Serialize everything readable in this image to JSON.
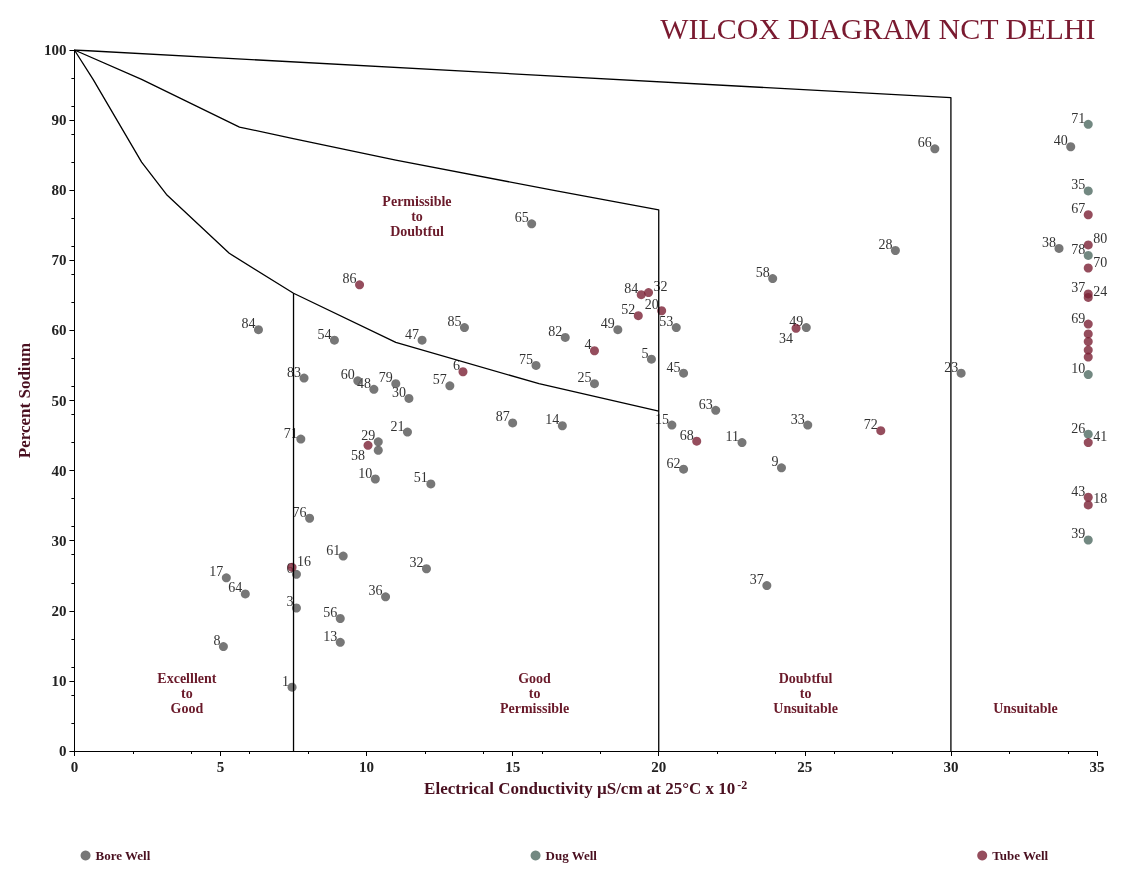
{
  "chart_data": {
    "type": "scatter",
    "title": "WILCOX DIAGRAM NCT DELHI",
    "xlabel": "Electrical Conductivity µS/cm at 25°C x 10$^{-2}$",
    "ylabel": "Percent Sodium",
    "xlim": [
      0,
      35
    ],
    "xticks": [
      0,
      5,
      10,
      15,
      20,
      25,
      30,
      35
    ],
    "ylim": [
      0,
      100
    ],
    "yticks": [
      0,
      10,
      20,
      30,
      40,
      50,
      60,
      70,
      80,
      90,
      100
    ],
    "grid": false,
    "legend": "bottom",
    "marker": "circle",
    "series": [
      {
        "name": "Bore Well",
        "color": "#555555",
        "x": [
          15.65,
          6.3,
          8.9,
          11.9,
          13.35,
          16.8,
          15.8,
          7.86,
          9.7,
          10.25,
          11.0,
          11.45,
          12.85,
          29.45,
          34.1,
          28.1,
          33.7,
          23.9,
          20.6,
          18.6,
          19.75,
          20.85,
          17.8,
          25.05,
          30.35,
          21.95,
          16.7,
          20.45,
          25.1,
          22.85,
          20.85,
          24.2,
          23.7,
          15.0,
          7.75,
          11.4,
          10.4,
          10.4,
          10.3,
          12.2,
          8.05,
          9.2,
          12.05,
          7.6,
          5.2,
          5.85,
          10.65,
          7.6,
          9.1,
          9.1,
          5.1,
          7.45
        ],
        "values": [
          75.2,
          60.1,
          58.6,
          58.6,
          60.4,
          59.0,
          55.0,
          53.2,
          52.8,
          51.6,
          52.4,
          50.3,
          52.1,
          85.9,
          86.2,
          71.4,
          71.7,
          67.4,
          60.4,
          60.1,
          55.9,
          53.9,
          52.4,
          60.4,
          53.9,
          48.6,
          46.4,
          46.5,
          46.5,
          44.0,
          40.2,
          40.4,
          23.6,
          46.8,
          44.5,
          45.5,
          44.1,
          42.9,
          38.8,
          38.1,
          33.2,
          27.8,
          26.0,
          25.2,
          24.7,
          22.4,
          22.0,
          20.4,
          18.9,
          15.5,
          14.9,
          9.1
        ]
      },
      {
        "name": "Dug Well",
        "color": "#4f6a62",
        "x": [
          34.7,
          34.7,
          34.7,
          34.7,
          34.7,
          34.7
        ],
        "values": [
          89.4,
          79.9,
          70.7,
          53.7,
          45.2,
          30.1
        ]
      },
      {
        "name": "Tube Well",
        "color": "#7a2035",
        "x": [
          9.76,
          13.3,
          17.8,
          19.4,
          19.65,
          19.3,
          20.1,
          24.7,
          27.6,
          7.45,
          10.05,
          34.7,
          34.7,
          34.7,
          34.7,
          34.7,
          34.7,
          34.7,
          34.7,
          34.7,
          34.7,
          34.7,
          34.7,
          34.7,
          21.3
        ],
        "values": [
          66.5,
          54.1,
          57.1,
          65.1,
          65.4,
          62.1,
          62.8,
          60.3,
          45.7,
          26.2,
          43.6,
          76.5,
          72.2,
          68.9,
          65.2,
          64.7,
          60.9,
          59.5,
          58.4,
          57.2,
          56.2,
          44.0,
          36.2,
          35.1,
          44.2
        ]
      },
      {
        "type": "line",
        "color": "#000000",
        "marker": "none",
        "x": [
          0,
          30,
          30
        ],
        "values": [
          100,
          93.2,
          0
        ]
      },
      {
        "type": "line",
        "color": "#000000",
        "marker": "none",
        "x": [
          0,
          2.3,
          5.65,
          7.45,
          11,
          16.5,
          20,
          20
        ],
        "values": [
          100,
          95.8,
          89,
          87.4,
          84.3,
          79.9,
          77.2,
          0
        ]
      },
      {
        "type": "line",
        "color": "#000000",
        "marker": "none",
        "x": [
          0,
          0.64,
          2.3,
          3.15,
          5.3,
          7.5,
          11,
          15.9,
          20
        ],
        "values": [
          100,
          95.8,
          84,
          79.4,
          71,
          65.3,
          58.3,
          52.4,
          48.5
        ]
      },
      {
        "type": "line",
        "color": "#000000",
        "marker": "none",
        "x": [
          7.5,
          7.5
        ],
        "values": [
          65.3,
          0
        ]
      }
    ],
    "annotations": [
      "Permissible\nto\nDoubtful",
      "Excelllent\nto\nGood",
      "Good\nto\nPermissible",
      "Doubtful\nto\nUnsuitable",
      "Unsuitable",
      {
        "text": "65",
        "x": 15.65,
        "y": 75.2
      },
      {
        "text": "84",
        "x": 6.3,
        "y": 60.1
      },
      {
        "text": "54",
        "x": 8.9,
        "y": 58.6
      },
      {
        "text": "47",
        "x": 11.9,
        "y": 58.6
      },
      {
        "text": "85",
        "x": 13.35,
        "y": 60.4
      },
      {
        "text": "82",
        "x": 16.8,
        "y": 59.0
      },
      {
        "text": "75",
        "x": 15.8,
        "y": 55.0
      },
      {
        "text": "83",
        "x": 7.86,
        "y": 53.2
      },
      {
        "text": "60",
        "x": 9.7,
        "y": 52.8
      },
      {
        "text": "48",
        "x": 10.25,
        "y": 51.6
      },
      {
        "text": "79",
        "x": 11.0,
        "y": 52.4
      },
      {
        "text": "30",
        "x": 11.45,
        "y": 50.3
      },
      {
        "text": "57",
        "x": 12.85,
        "y": 52.1
      },
      {
        "text": "66",
        "x": 29.45,
        "y": 85.9
      },
      {
        "text": "40",
        "x": 34.1,
        "y": 86.2
      },
      {
        "text": "28",
        "x": 28.1,
        "y": 71.4
      },
      {
        "text": "38",
        "x": 33.7,
        "y": 71.7
      },
      {
        "text": "58",
        "x": 23.9,
        "y": 67.4
      },
      {
        "text": "53",
        "x": 20.6,
        "y": 60.4
      },
      {
        "text": "49",
        "x": 18.6,
        "y": 60.1
      },
      {
        "text": "5",
        "x": 19.75,
        "y": 55.9
      },
      {
        "text": "45",
        "x": 20.85,
        "y": 53.9
      },
      {
        "text": "25",
        "x": 17.8,
        "y": 52.4
      },
      {
        "text": "49",
        "x": 25.05,
        "y": 60.4
      },
      {
        "text": "23",
        "x": 30.35,
        "y": 53.9
      },
      {
        "text": "63",
        "x": 21.95,
        "y": 48.6
      },
      {
        "text": "14",
        "x": 16.7,
        "y": 46.4
      },
      {
        "text": "15",
        "x": 20.45,
        "y": 46.5
      },
      {
        "text": "33",
        "x": 25.1,
        "y": 46.5
      },
      {
        "text": "11",
        "x": 22.85,
        "y": 44.0
      },
      {
        "text": "62",
        "x": 20.85,
        "y": 40.2
      },
      {
        "text": "9",
        "x": 24.2,
        "y": 40.4
      },
      {
        "text": "37",
        "x": 23.7,
        "y": 23.6
      },
      {
        "text": "87",
        "x": 15.0,
        "y": 46.8
      },
      {
        "text": "71",
        "x": 7.75,
        "y": 44.5
      },
      {
        "text": "21",
        "x": 11.4,
        "y": 45.5
      },
      {
        "text": "29",
        "x": 10.4,
        "y": 44.1
      },
      {
        "text": "10",
        "x": 10.3,
        "y": 38.8
      },
      {
        "text": "51",
        "x": 12.2,
        "y": 38.1
      },
      {
        "text": "76",
        "x": 8.05,
        "y": 33.2
      },
      {
        "text": "61",
        "x": 9.2,
        "y": 27.8
      },
      {
        "text": "32",
        "x": 12.05,
        "y": 26.0
      },
      {
        "text": "6",
        "x": 7.6,
        "y": 25.2
      },
      {
        "text": "17",
        "x": 5.2,
        "y": 24.7
      },
      {
        "text": "64",
        "x": 5.85,
        "y": 22.4
      },
      {
        "text": "36",
        "x": 10.65,
        "y": 22.0
      },
      {
        "text": "3",
        "x": 7.6,
        "y": 20.4
      },
      {
        "text": "56",
        "x": 9.1,
        "y": 18.9
      },
      {
        "text": "13",
        "x": 9.1,
        "y": 15.5
      },
      {
        "text": "8",
        "x": 5.1,
        "y": 14.9
      },
      {
        "text": "1",
        "x": 7.45,
        "y": 9.1
      },
      {
        "text": "71",
        "x": 34.7,
        "y": 89.4
      },
      {
        "text": "35",
        "x": 34.7,
        "y": 79.9
      },
      {
        "text": "78",
        "x": 34.7,
        "y": 70.7
      },
      {
        "text": "10",
        "x": 34.7,
        "y": 53.7
      },
      {
        "text": "26",
        "x": 34.7,
        "y": 45.2
      },
      {
        "text": "39",
        "x": 34.7,
        "y": 30.1
      },
      {
        "text": "86",
        "x": 9.76,
        "y": 66.5
      },
      {
        "text": "6",
        "x": 13.3,
        "y": 54.1
      },
      {
        "text": "4",
        "x": 17.8,
        "y": 57.1
      },
      {
        "text": "84",
        "x": 19.4,
        "y": 65.1
      },
      {
        "text": "32",
        "x": 19.65,
        "y": 65.4
      },
      {
        "text": "52",
        "x": 19.3,
        "y": 62.1
      },
      {
        "text": "20",
        "x": 20.1,
        "y": 62.8
      },
      {
        "text": "34",
        "x": 24.7,
        "y": 60.3
      },
      {
        "text": "72",
        "x": 27.6,
        "y": 45.7
      },
      {
        "text": "16",
        "x": 7.45,
        "y": 26.2
      },
      {
        "text": "58",
        "x": 10.05,
        "y": 43.6
      },
      {
        "text": "67",
        "x": 34.7,
        "y": 76.5
      },
      {
        "text": "80",
        "x": 34.7,
        "y": 72.2
      },
      {
        "text": "70",
        "x": 34.7,
        "y": 68.9
      },
      {
        "text": "37",
        "x": 34.7,
        "y": 65.2
      },
      {
        "text": "24",
        "x": 34.7,
        "y": 64.7
      },
      {
        "text": "69",
        "x": 34.7,
        "y": 60.9
      },
      {
        "text": "41",
        "x": 34.7,
        "y": 44.0
      },
      {
        "text": "43",
        "x": 34.7,
        "y": 36.2
      },
      {
        "text": "18",
        "x": 34.7,
        "y": 35.1
      },
      {
        "text": "68",
        "x": 21.3,
        "y": 44.2
      }
    ]
  }
}
